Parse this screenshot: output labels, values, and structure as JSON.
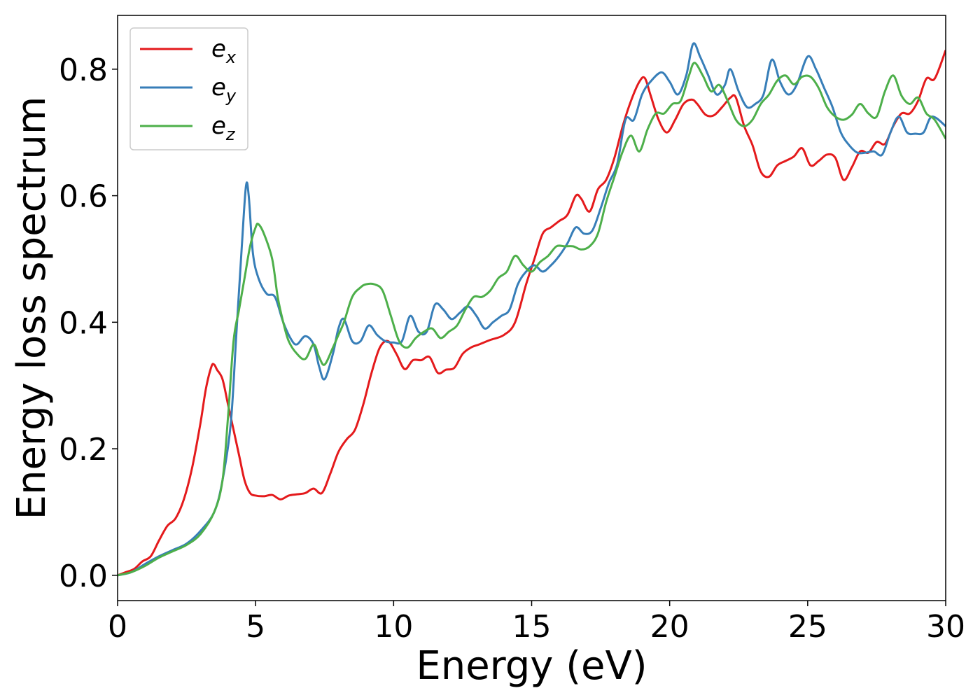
{
  "chart_data": {
    "type": "line",
    "title": "",
    "xlabel": "Energy (eV)",
    "ylabel": "Energy loss spectrum",
    "xlim": [
      0,
      30
    ],
    "ylim": [
      -0.04,
      0.885
    ],
    "xticks": [
      0,
      5,
      10,
      15,
      20,
      25,
      30
    ],
    "xtick_labels": [
      "0",
      "5",
      "10",
      "15",
      "20",
      "25",
      "30"
    ],
    "yticks": [
      0.0,
      0.2,
      0.4,
      0.6,
      0.8
    ],
    "ytick_labels": [
      "0.0",
      "0.2",
      "0.4",
      "0.6",
      "0.8"
    ],
    "grid": false,
    "legend_position": "top-left",
    "series": [
      {
        "name": "e_x",
        "base": "e",
        "sub": "x",
        "color": "#e41a1c",
        "points": [
          [
            0,
            0.0
          ],
          [
            0.3,
            0.005
          ],
          [
            0.6,
            0.01
          ],
          [
            0.9,
            0.022
          ],
          [
            1.2,
            0.03
          ],
          [
            1.5,
            0.055
          ],
          [
            1.8,
            0.078
          ],
          [
            2.1,
            0.09
          ],
          [
            2.4,
            0.12
          ],
          [
            2.7,
            0.17
          ],
          [
            3.0,
            0.24
          ],
          [
            3.2,
            0.295
          ],
          [
            3.4,
            0.33
          ],
          [
            3.5,
            0.333
          ],
          [
            3.6,
            0.325
          ],
          [
            3.8,
            0.31
          ],
          [
            4.0,
            0.27
          ],
          [
            4.2,
            0.23
          ],
          [
            4.4,
            0.19
          ],
          [
            4.6,
            0.15
          ],
          [
            4.8,
            0.13
          ],
          [
            5.0,
            0.126
          ],
          [
            5.3,
            0.125
          ],
          [
            5.6,
            0.127
          ],
          [
            5.9,
            0.12
          ],
          [
            6.2,
            0.126
          ],
          [
            6.5,
            0.128
          ],
          [
            6.8,
            0.13
          ],
          [
            7.1,
            0.137
          ],
          [
            7.4,
            0.13
          ],
          [
            7.7,
            0.16
          ],
          [
            8.0,
            0.195
          ],
          [
            8.3,
            0.215
          ],
          [
            8.6,
            0.23
          ],
          [
            8.9,
            0.27
          ],
          [
            9.2,
            0.32
          ],
          [
            9.5,
            0.36
          ],
          [
            9.8,
            0.37
          ],
          [
            10.1,
            0.35
          ],
          [
            10.4,
            0.326
          ],
          [
            10.7,
            0.34
          ],
          [
            11.0,
            0.34
          ],
          [
            11.3,
            0.345
          ],
          [
            11.6,
            0.32
          ],
          [
            11.9,
            0.325
          ],
          [
            12.2,
            0.328
          ],
          [
            12.5,
            0.35
          ],
          [
            12.8,
            0.36
          ],
          [
            13.1,
            0.365
          ],
          [
            13.5,
            0.372
          ],
          [
            14.0,
            0.38
          ],
          [
            14.4,
            0.4
          ],
          [
            14.8,
            0.46
          ],
          [
            15.1,
            0.5
          ],
          [
            15.4,
            0.54
          ],
          [
            15.7,
            0.55
          ],
          [
            16.0,
            0.56
          ],
          [
            16.3,
            0.57
          ],
          [
            16.6,
            0.6
          ],
          [
            16.8,
            0.595
          ],
          [
            17.1,
            0.575
          ],
          [
            17.4,
            0.61
          ],
          [
            17.7,
            0.625
          ],
          [
            18.0,
            0.66
          ],
          [
            18.3,
            0.71
          ],
          [
            18.6,
            0.75
          ],
          [
            18.9,
            0.78
          ],
          [
            19.1,
            0.786
          ],
          [
            19.3,
            0.76
          ],
          [
            19.6,
            0.72
          ],
          [
            19.9,
            0.7
          ],
          [
            20.2,
            0.72
          ],
          [
            20.5,
            0.745
          ],
          [
            20.8,
            0.752
          ],
          [
            21.0,
            0.745
          ],
          [
            21.3,
            0.728
          ],
          [
            21.6,
            0.727
          ],
          [
            21.9,
            0.74
          ],
          [
            22.2,
            0.755
          ],
          [
            22.4,
            0.755
          ],
          [
            22.7,
            0.71
          ],
          [
            23.0,
            0.68
          ],
          [
            23.3,
            0.638
          ],
          [
            23.6,
            0.63
          ],
          [
            23.9,
            0.648
          ],
          [
            24.2,
            0.655
          ],
          [
            24.5,
            0.662
          ],
          [
            24.8,
            0.675
          ],
          [
            25.1,
            0.648
          ],
          [
            25.4,
            0.655
          ],
          [
            25.7,
            0.665
          ],
          [
            26.0,
            0.66
          ],
          [
            26.3,
            0.625
          ],
          [
            26.6,
            0.645
          ],
          [
            26.9,
            0.67
          ],
          [
            27.2,
            0.668
          ],
          [
            27.5,
            0.685
          ],
          [
            27.8,
            0.682
          ],
          [
            28.1,
            0.71
          ],
          [
            28.4,
            0.73
          ],
          [
            28.7,
            0.73
          ],
          [
            29.0,
            0.75
          ],
          [
            29.3,
            0.785
          ],
          [
            29.6,
            0.785
          ],
          [
            30.0,
            0.83
          ]
        ]
      },
      {
        "name": "e_y",
        "base": "e",
        "sub": "y",
        "color": "#377eb8",
        "points": [
          [
            0,
            0.0
          ],
          [
            0.5,
            0.005
          ],
          [
            1.0,
            0.018
          ],
          [
            1.5,
            0.03
          ],
          [
            2.0,
            0.04
          ],
          [
            2.5,
            0.05
          ],
          [
            3.0,
            0.07
          ],
          [
            3.5,
            0.1
          ],
          [
            3.8,
            0.15
          ],
          [
            4.1,
            0.24
          ],
          [
            4.3,
            0.38
          ],
          [
            4.5,
            0.52
          ],
          [
            4.65,
            0.615
          ],
          [
            4.75,
            0.6
          ],
          [
            4.9,
            0.51
          ],
          [
            5.1,
            0.47
          ],
          [
            5.4,
            0.445
          ],
          [
            5.7,
            0.44
          ],
          [
            6.0,
            0.4
          ],
          [
            6.3,
            0.372
          ],
          [
            6.5,
            0.365
          ],
          [
            6.8,
            0.378
          ],
          [
            7.1,
            0.365
          ],
          [
            7.3,
            0.33
          ],
          [
            7.5,
            0.31
          ],
          [
            7.8,
            0.35
          ],
          [
            8.0,
            0.39
          ],
          [
            8.2,
            0.405
          ],
          [
            8.5,
            0.37
          ],
          [
            8.8,
            0.37
          ],
          [
            9.1,
            0.395
          ],
          [
            9.4,
            0.38
          ],
          [
            9.7,
            0.37
          ],
          [
            10.0,
            0.368
          ],
          [
            10.3,
            0.37
          ],
          [
            10.6,
            0.41
          ],
          [
            10.9,
            0.385
          ],
          [
            11.2,
            0.385
          ],
          [
            11.5,
            0.428
          ],
          [
            11.8,
            0.42
          ],
          [
            12.1,
            0.405
          ],
          [
            12.4,
            0.415
          ],
          [
            12.7,
            0.425
          ],
          [
            13.0,
            0.41
          ],
          [
            13.3,
            0.39
          ],
          [
            13.6,
            0.4
          ],
          [
            13.9,
            0.41
          ],
          [
            14.2,
            0.42
          ],
          [
            14.5,
            0.46
          ],
          [
            14.8,
            0.48
          ],
          [
            15.1,
            0.49
          ],
          [
            15.4,
            0.48
          ],
          [
            15.7,
            0.49
          ],
          [
            16.0,
            0.505
          ],
          [
            16.3,
            0.525
          ],
          [
            16.6,
            0.55
          ],
          [
            16.9,
            0.54
          ],
          [
            17.2,
            0.545
          ],
          [
            17.5,
            0.58
          ],
          [
            17.8,
            0.62
          ],
          [
            18.1,
            0.65
          ],
          [
            18.4,
            0.72
          ],
          [
            18.7,
            0.72
          ],
          [
            19.0,
            0.76
          ],
          [
            19.3,
            0.78
          ],
          [
            19.7,
            0.795
          ],
          [
            20.0,
            0.78
          ],
          [
            20.3,
            0.76
          ],
          [
            20.6,
            0.79
          ],
          [
            20.85,
            0.84
          ],
          [
            21.1,
            0.82
          ],
          [
            21.4,
            0.79
          ],
          [
            21.7,
            0.76
          ],
          [
            22.0,
            0.775
          ],
          [
            22.2,
            0.8
          ],
          [
            22.5,
            0.765
          ],
          [
            22.8,
            0.74
          ],
          [
            23.1,
            0.745
          ],
          [
            23.4,
            0.76
          ],
          [
            23.7,
            0.815
          ],
          [
            24.0,
            0.78
          ],
          [
            24.3,
            0.76
          ],
          [
            24.6,
            0.775
          ],
          [
            25.0,
            0.82
          ],
          [
            25.3,
            0.8
          ],
          [
            25.6,
            0.77
          ],
          [
            25.9,
            0.74
          ],
          [
            26.2,
            0.7
          ],
          [
            26.5,
            0.68
          ],
          [
            26.8,
            0.668
          ],
          [
            27.1,
            0.668
          ],
          [
            27.4,
            0.67
          ],
          [
            27.7,
            0.665
          ],
          [
            28.0,
            0.7
          ],
          [
            28.3,
            0.725
          ],
          [
            28.6,
            0.7
          ],
          [
            28.9,
            0.698
          ],
          [
            29.2,
            0.7
          ],
          [
            29.5,
            0.725
          ],
          [
            30.0,
            0.71
          ]
        ]
      },
      {
        "name": "e_z",
        "base": "e",
        "sub": "z",
        "color": "#4daf4a",
        "points": [
          [
            0,
            0.0
          ],
          [
            0.5,
            0.005
          ],
          [
            1.0,
            0.015
          ],
          [
            1.5,
            0.028
          ],
          [
            2.0,
            0.038
          ],
          [
            2.5,
            0.048
          ],
          [
            3.0,
            0.065
          ],
          [
            3.5,
            0.1
          ],
          [
            3.8,
            0.15
          ],
          [
            4.0,
            0.25
          ],
          [
            4.2,
            0.37
          ],
          [
            4.4,
            0.42
          ],
          [
            4.6,
            0.47
          ],
          [
            4.8,
            0.52
          ],
          [
            5.0,
            0.55
          ],
          [
            5.1,
            0.555
          ],
          [
            5.3,
            0.54
          ],
          [
            5.6,
            0.5
          ],
          [
            5.8,
            0.44
          ],
          [
            6.0,
            0.4
          ],
          [
            6.2,
            0.37
          ],
          [
            6.5,
            0.35
          ],
          [
            6.8,
            0.342
          ],
          [
            7.1,
            0.365
          ],
          [
            7.3,
            0.345
          ],
          [
            7.5,
            0.333
          ],
          [
            7.8,
            0.36
          ],
          [
            8.0,
            0.38
          ],
          [
            8.2,
            0.4
          ],
          [
            8.5,
            0.44
          ],
          [
            8.8,
            0.455
          ],
          [
            9.0,
            0.46
          ],
          [
            9.3,
            0.46
          ],
          [
            9.6,
            0.45
          ],
          [
            9.9,
            0.41
          ],
          [
            10.2,
            0.37
          ],
          [
            10.5,
            0.36
          ],
          [
            10.8,
            0.375
          ],
          [
            11.1,
            0.385
          ],
          [
            11.4,
            0.39
          ],
          [
            11.7,
            0.375
          ],
          [
            12.0,
            0.385
          ],
          [
            12.3,
            0.395
          ],
          [
            12.6,
            0.42
          ],
          [
            12.9,
            0.44
          ],
          [
            13.2,
            0.44
          ],
          [
            13.5,
            0.45
          ],
          [
            13.8,
            0.47
          ],
          [
            14.1,
            0.48
          ],
          [
            14.4,
            0.505
          ],
          [
            14.7,
            0.49
          ],
          [
            15.0,
            0.48
          ],
          [
            15.3,
            0.495
          ],
          [
            15.6,
            0.505
          ],
          [
            15.9,
            0.52
          ],
          [
            16.2,
            0.52
          ],
          [
            16.5,
            0.52
          ],
          [
            16.8,
            0.515
          ],
          [
            17.1,
            0.52
          ],
          [
            17.4,
            0.54
          ],
          [
            17.7,
            0.59
          ],
          [
            18.0,
            0.63
          ],
          [
            18.3,
            0.67
          ],
          [
            18.6,
            0.695
          ],
          [
            18.9,
            0.67
          ],
          [
            19.2,
            0.705
          ],
          [
            19.5,
            0.73
          ],
          [
            19.8,
            0.73
          ],
          [
            20.1,
            0.745
          ],
          [
            20.4,
            0.75
          ],
          [
            20.7,
            0.79
          ],
          [
            20.9,
            0.81
          ],
          [
            21.2,
            0.79
          ],
          [
            21.5,
            0.765
          ],
          [
            21.8,
            0.775
          ],
          [
            22.1,
            0.75
          ],
          [
            22.4,
            0.72
          ],
          [
            22.7,
            0.71
          ],
          [
            23.0,
            0.72
          ],
          [
            23.3,
            0.745
          ],
          [
            23.6,
            0.76
          ],
          [
            23.9,
            0.782
          ],
          [
            24.2,
            0.79
          ],
          [
            24.5,
            0.776
          ],
          [
            24.8,
            0.788
          ],
          [
            25.1,
            0.788
          ],
          [
            25.4,
            0.77
          ],
          [
            25.7,
            0.74
          ],
          [
            26.0,
            0.725
          ],
          [
            26.3,
            0.72
          ],
          [
            26.6,
            0.728
          ],
          [
            26.9,
            0.745
          ],
          [
            27.2,
            0.73
          ],
          [
            27.5,
            0.725
          ],
          [
            27.8,
            0.765
          ],
          [
            28.1,
            0.79
          ],
          [
            28.4,
            0.758
          ],
          [
            28.7,
            0.745
          ],
          [
            29.0,
            0.755
          ],
          [
            29.3,
            0.73
          ],
          [
            29.6,
            0.72
          ],
          [
            30.0,
            0.69
          ]
        ]
      }
    ]
  }
}
